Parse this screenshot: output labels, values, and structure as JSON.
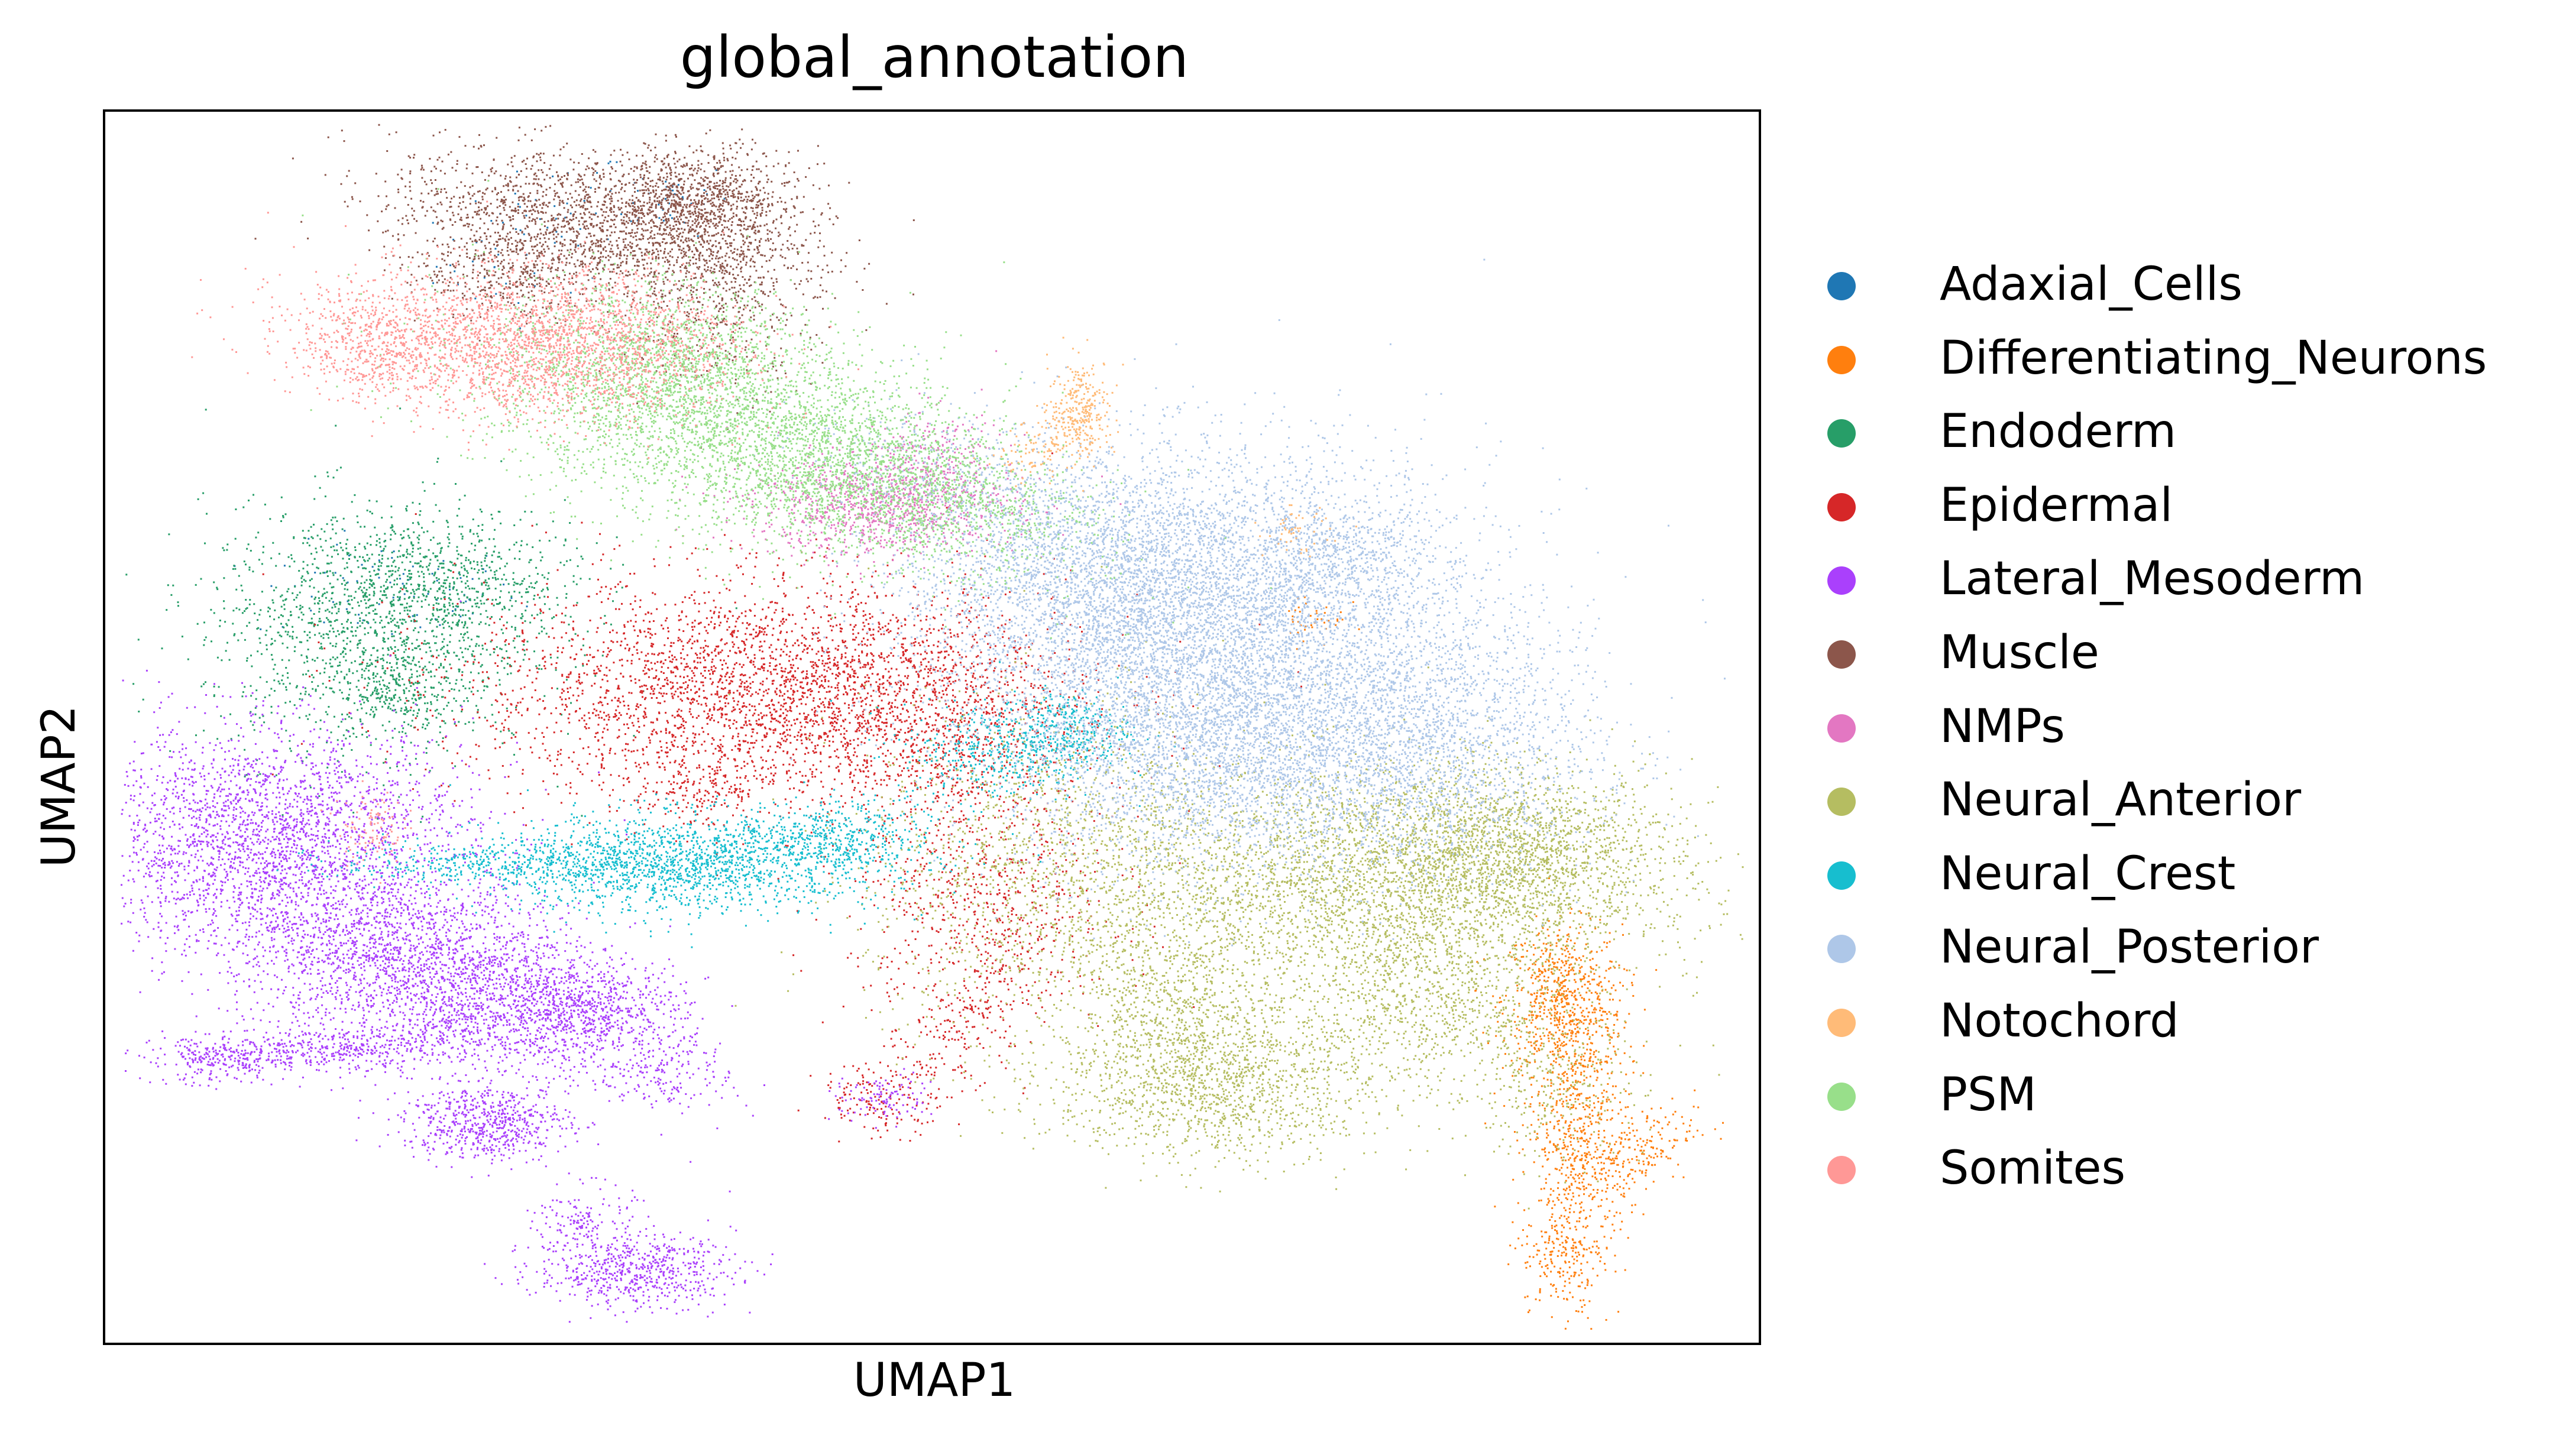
{
  "chart_data": {
    "type": "scatter",
    "title": "global_annotation",
    "xlabel": "UMAP1",
    "ylabel": "UMAP2",
    "xlim": [
      0,
      100
    ],
    "ylim": [
      0,
      100
    ],
    "ticks": "none",
    "grid": false,
    "legend_position": "right-outside",
    "series": [
      {
        "name": "Adaxial_Cells",
        "color": "#1f77b4",
        "clusters": [
          [
            26,
            90,
            3,
            3,
            0.4,
            60
          ],
          [
            17,
            61,
            4,
            2,
            0,
            80
          ],
          [
            34,
            93,
            2,
            1.5,
            0,
            40
          ]
        ]
      },
      {
        "name": "Differentiating_Neurons",
        "color": "#ff7f0e",
        "clusters": [
          [
            88,
            28,
            1.8,
            3,
            0,
            600
          ],
          [
            89,
            17,
            1.5,
            6,
            0,
            700
          ],
          [
            92,
            15,
            2,
            2,
            0.6,
            200
          ],
          [
            88,
            7,
            1.2,
            2,
            0,
            150
          ],
          [
            73,
            59,
            1,
            1.2,
            0,
            40
          ]
        ]
      },
      {
        "name": "Endoderm",
        "color": "#279e68",
        "clusters": [
          [
            16,
            58,
            5,
            5,
            0,
            1400
          ],
          [
            21,
            62,
            4,
            2.5,
            0,
            500
          ],
          [
            18,
            53,
            2,
            2,
            0,
            200
          ]
        ]
      },
      {
        "name": "Epidermal",
        "color": "#d62728",
        "clusters": [
          [
            40,
            53,
            9,
            4.5,
            0,
            3200
          ],
          [
            50,
            50,
            4,
            4,
            0,
            600
          ],
          [
            53,
            36,
            4,
            5,
            0,
            700
          ],
          [
            36,
            45,
            2,
            1.5,
            0,
            150
          ],
          [
            52,
            26,
            2,
            3,
            0.6,
            200
          ],
          [
            47,
            20,
            2,
            1.5,
            0,
            150
          ]
        ]
      },
      {
        "name": "Lateral_Mesoderm",
        "color": "#aa40fc",
        "clusters": [
          [
            10,
            41,
            6,
            4.5,
            0,
            2600
          ],
          [
            20,
            30,
            6,
            4,
            -0.4,
            2600
          ],
          [
            29,
            27,
            3,
            2,
            0,
            600
          ],
          [
            14,
            24,
            5,
            1,
            0.3,
            500
          ],
          [
            7,
            23,
            2,
            1,
            0,
            200
          ],
          [
            23,
            18,
            2.5,
            1.5,
            0,
            600
          ],
          [
            29,
            10,
            1.5,
            1.5,
            0,
            150
          ],
          [
            32,
            6,
            3,
            1.5,
            0,
            600
          ],
          [
            34,
            22,
            2,
            1.5,
            0,
            150
          ],
          [
            47,
            20,
            1.5,
            1,
            0,
            100
          ]
        ]
      },
      {
        "name": "Muscle",
        "color": "#8c564b",
        "clusters": [
          [
            29,
            91,
            6,
            3,
            -0.3,
            1600
          ],
          [
            36,
            93,
            3,
            2,
            0,
            800
          ],
          [
            37,
            86,
            3,
            4,
            0,
            600
          ],
          [
            25,
            87,
            3,
            2,
            0,
            400
          ]
        ]
      },
      {
        "name": "NMPs",
        "color": "#e377c2",
        "clusters": [
          [
            47,
            68,
            4,
            2,
            0,
            1000
          ],
          [
            50,
            72,
            2,
            2,
            0,
            200
          ]
        ]
      },
      {
        "name": "Neural_Anterior",
        "color": "#b5bd61",
        "clusters": [
          [
            77,
            37,
            8,
            5,
            0,
            3200
          ],
          [
            85,
            40,
            5,
            3,
            0,
            1400
          ],
          [
            67,
            21,
            5,
            3,
            0,
            1300
          ],
          [
            58,
            38,
            6,
            7,
            0,
            1600
          ],
          [
            80,
            27,
            4,
            3,
            0,
            600
          ],
          [
            65,
            27,
            3,
            3,
            0,
            500
          ],
          [
            87,
            21,
            3,
            3,
            0,
            300
          ]
        ]
      },
      {
        "name": "Neural_Crest",
        "color": "#17becf",
        "clusters": [
          [
            35,
            39,
            6,
            2,
            0,
            1600
          ],
          [
            24,
            39,
            5,
            0.8,
            0,
            400
          ],
          [
            44,
            41,
            3,
            1.5,
            0,
            400
          ],
          [
            54,
            48,
            3,
            2,
            0,
            400
          ],
          [
            58,
            50,
            2,
            1.5,
            0,
            300
          ]
        ]
      },
      {
        "name": "Neural_Posterior",
        "color": "#aec7e8",
        "clusters": [
          [
            68,
            58,
            8,
            7,
            0,
            5000
          ],
          [
            60,
            62,
            6,
            5,
            0,
            2500
          ],
          [
            78,
            48,
            6,
            5,
            0,
            2400
          ],
          [
            65,
            48,
            5,
            5,
            0,
            1800
          ],
          [
            52,
            70,
            5,
            3,
            -0.5,
            400
          ],
          [
            74,
            64,
            3,
            2,
            0,
            400
          ]
        ]
      },
      {
        "name": "Notochord",
        "color": "#ffbb78",
        "clusters": [
          [
            59,
            76,
            1,
            2,
            0,
            250
          ],
          [
            57,
            73,
            1.5,
            1.5,
            0.5,
            150
          ],
          [
            72,
            66,
            1,
            1,
            0,
            50
          ]
        ]
      },
      {
        "name": "PSM",
        "color": "#98df8a",
        "clusters": [
          [
            39,
            74,
            8,
            5,
            -0.5,
            3600
          ],
          [
            49,
            69,
            5,
            3,
            -0.4,
            900
          ],
          [
            34,
            80,
            4,
            3,
            0,
            800
          ]
        ]
      },
      {
        "name": "Somites",
        "color": "#ff9896",
        "clusters": [
          [
            24,
            81,
            6,
            3,
            -0.2,
            2000
          ],
          [
            31,
            82,
            4,
            3,
            0,
            600
          ],
          [
            16,
            81,
            2,
            2,
            0,
            300
          ],
          [
            16,
            42,
            1,
            1.5,
            0,
            100
          ]
        ]
      }
    ]
  }
}
